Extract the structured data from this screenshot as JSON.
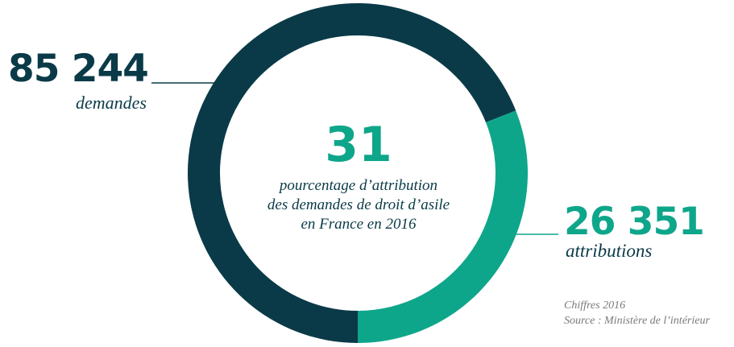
{
  "chart_data": {
    "type": "pie",
    "style": "donut",
    "categories": [
      "demandes",
      "attributions"
    ],
    "values": [
      85244,
      26351
    ],
    "share_of_total": [
      0.69,
      0.31
    ],
    "center_value": "31",
    "center_caption_lines": [
      "pourcentage d’attribution",
      "des demandes de droit d’asile",
      "en France en 2016"
    ],
    "colors": {
      "demandes": "#0a3a47",
      "attributions": "#0ea68a"
    }
  },
  "requests": {
    "value": "85 244",
    "label": "demandes"
  },
  "grants": {
    "value": "26 351",
    "label": "attributions"
  },
  "notes": {
    "line1": "Chiffres 2016",
    "line2": "Source : Ministère de l’intérieur"
  }
}
